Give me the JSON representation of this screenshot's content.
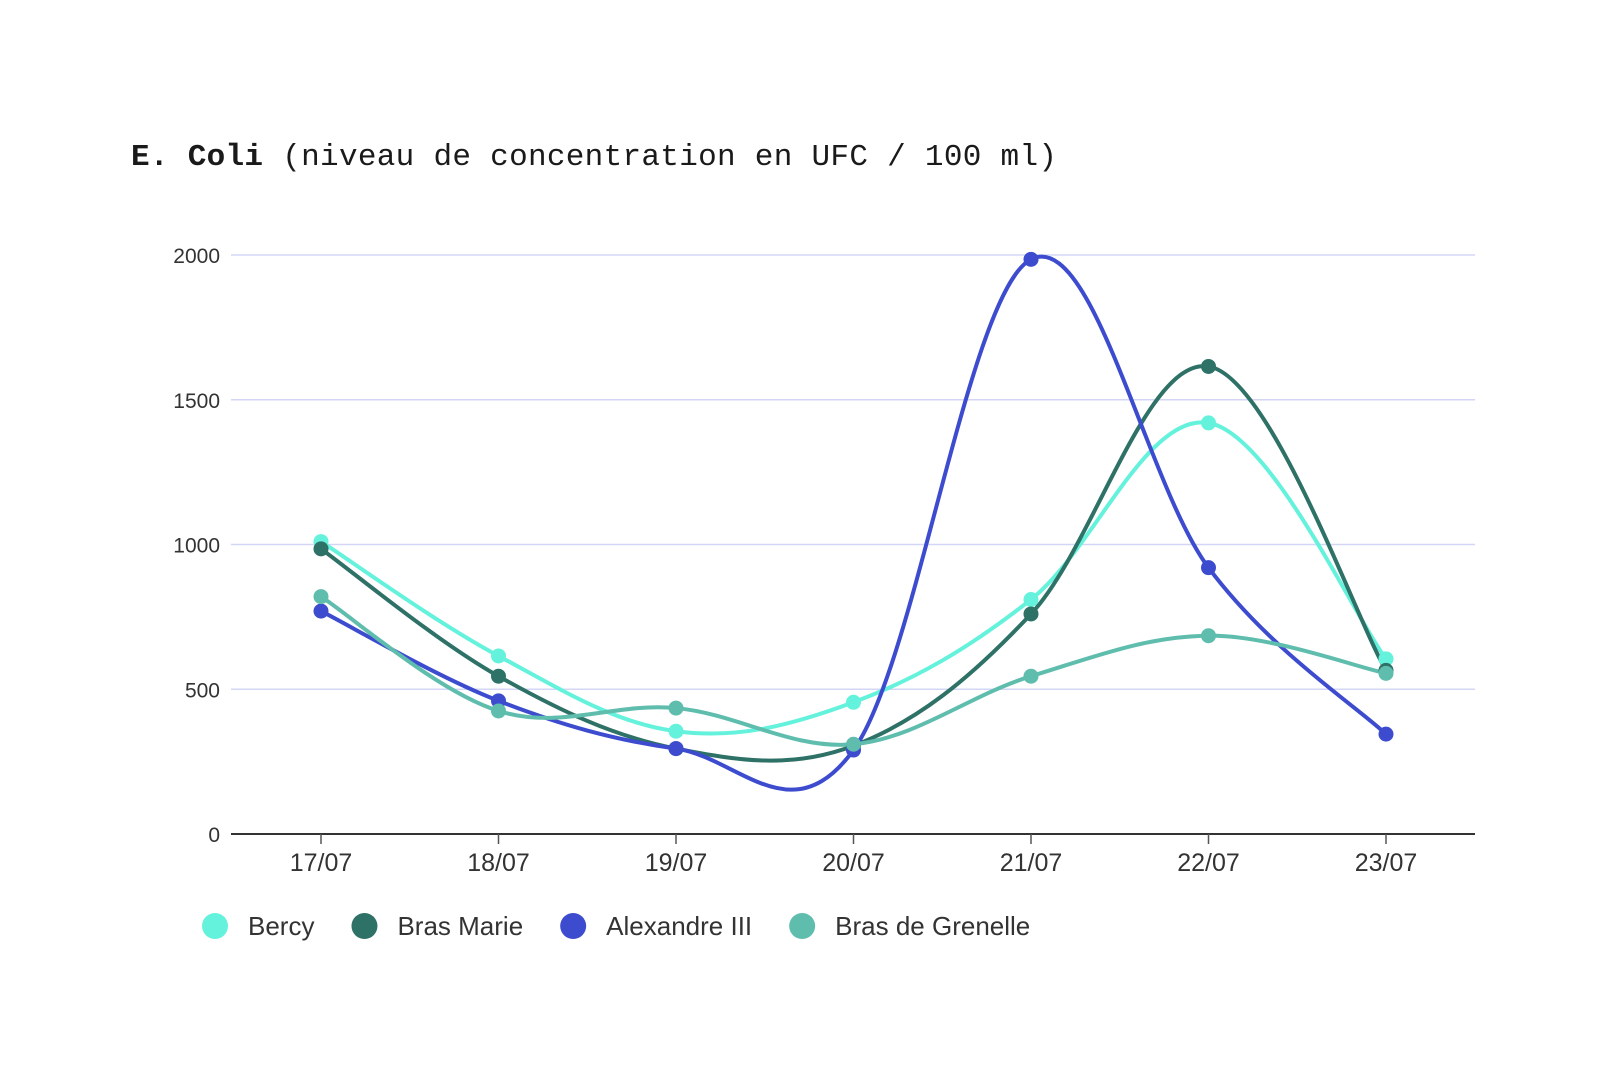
{
  "title": {
    "bold": "E. Coli",
    "rest": "(niveau de concentration en UFC / 100 ml)"
  },
  "chart_data": {
    "type": "line",
    "title": "E. Coli (niveau de concentration en UFC / 100 ml)",
    "xlabel": "",
    "ylabel": "",
    "categories": [
      "17/07",
      "18/07",
      "19/07",
      "20/07",
      "21/07",
      "22/07",
      "23/07"
    ],
    "yticks": [
      0,
      500,
      1000,
      1500,
      2000
    ],
    "ylim": [
      0,
      2000
    ],
    "grid": true,
    "smooth": true,
    "legend_position": "bottom-left",
    "series": [
      {
        "name": "Bercy",
        "color": "#64f2dc",
        "values": [
          1010,
          615,
          355,
          455,
          810,
          1420,
          605
        ]
      },
      {
        "name": "Bras Marie",
        "color": "#2e7166",
        "values": [
          985,
          545,
          295,
          305,
          760,
          1615,
          565
        ]
      },
      {
        "name": "Alexandre III",
        "color": "#3d4ccf",
        "values": [
          770,
          460,
          295,
          290,
          1985,
          920,
          345
        ]
      },
      {
        "name": "Bras de Grenelle",
        "color": "#5fbdae",
        "values": [
          820,
          425,
          435,
          310,
          545,
          685,
          555
        ]
      }
    ]
  }
}
